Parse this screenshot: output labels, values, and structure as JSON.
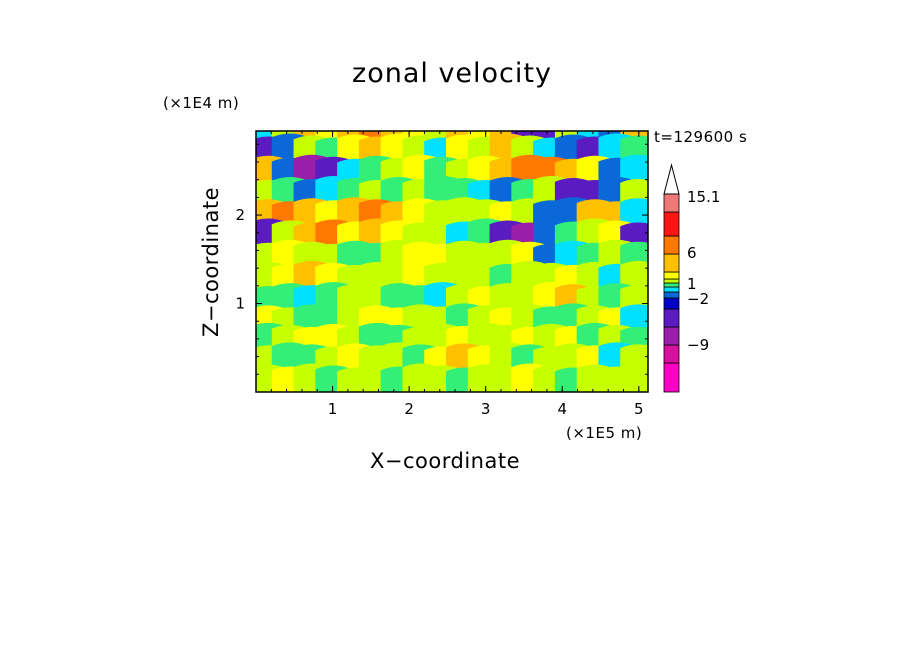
{
  "chart_data": {
    "type": "heatmap",
    "title": "zonal velocity",
    "xlabel": "X−coordinate",
    "ylabel": "Z−coordinate",
    "x_unit": "(×1E5 m)",
    "y_unit": "(×1E4 m)",
    "annotation": "t=129600 s",
    "xlim": [
      0,
      5.12
    ],
    "ylim": [
      0,
      2.95
    ],
    "x_ticks": [
      1,
      2,
      3,
      4,
      5
    ],
    "y_ticks": [
      1,
      2
    ],
    "colorbar": {
      "levels": [
        -15,
        -12,
        -9,
        -6,
        -4,
        -2,
        -1,
        0,
        1,
        2,
        4,
        6,
        9,
        12,
        15.1
      ],
      "labels": [
        {
          "value": 15.1,
          "text": "15.1"
        },
        {
          "value": 6,
          "text": "6"
        },
        {
          "value": 1,
          "text": "1"
        },
        {
          "value": -2,
          "text": "−2"
        },
        {
          "value": -9,
          "text": "−9"
        }
      ],
      "colors": [
        "#ff00c4",
        "#d7109e",
        "#9b1eaa",
        "#5a1bc1",
        "#0000c8",
        "#0a68d8",
        "#00e0ff",
        "#33ee77",
        "#c6ff00",
        "#ffff00",
        "#ffc000",
        "#ff7800",
        "#ff1414",
        "#f07878",
        "#ffc8c8"
      ],
      "arrow_color": "#ffffff"
    },
    "bands": [
      {
        "z": 2.92,
        "values": [
          -1,
          1,
          4,
          2,
          4,
          6,
          4,
          2,
          1,
          4,
          2,
          4,
          -6,
          -6,
          1,
          -1,
          -2,
          4
        ]
      },
      {
        "z": 2.72,
        "values": [
          -6,
          -2,
          1,
          0,
          2,
          4,
          2,
          1,
          -1,
          2,
          1,
          4,
          1,
          -1,
          -2,
          -6,
          -1,
          0
        ]
      },
      {
        "z": 2.48,
        "values": [
          4,
          -2,
          -9,
          -6,
          -1,
          0,
          1,
          2,
          0,
          1,
          2,
          4,
          6,
          6,
          4,
          2,
          -2,
          -1
        ]
      },
      {
        "z": 2.24,
        "values": [
          1,
          0,
          -2,
          -1,
          0,
          1,
          0,
          1,
          0,
          0,
          -1,
          -2,
          0,
          1,
          -6,
          -6,
          -2,
          1
        ]
      },
      {
        "z": 2.0,
        "values": [
          4,
          6,
          4,
          2,
          4,
          6,
          4,
          2,
          1,
          1,
          1,
          2,
          1,
          -2,
          -2,
          4,
          4,
          -1
        ]
      },
      {
        "z": 1.76,
        "values": [
          -6,
          1,
          4,
          6,
          2,
          4,
          2,
          1,
          1,
          -1,
          0,
          -6,
          -9,
          -2,
          0,
          1,
          2,
          -6
        ]
      },
      {
        "z": 1.52,
        "values": [
          1,
          2,
          1,
          1,
          0,
          0,
          1,
          2,
          2,
          1,
          1,
          1,
          2,
          -2,
          -1,
          0,
          1,
          0
        ]
      },
      {
        "z": 1.28,
        "values": [
          1,
          2,
          4,
          2,
          1,
          1,
          1,
          2,
          1,
          1,
          1,
          0,
          1,
          1,
          2,
          1,
          -1,
          1
        ]
      },
      {
        "z": 1.04,
        "values": [
          0,
          0,
          -1,
          0,
          1,
          1,
          0,
          0,
          -1,
          1,
          2,
          1,
          1,
          2,
          4,
          1,
          0,
          1
        ]
      },
      {
        "z": 0.8,
        "values": [
          2,
          1,
          0,
          0,
          1,
          2,
          2,
          1,
          1,
          0,
          1,
          2,
          1,
          0,
          0,
          1,
          2,
          -1
        ]
      },
      {
        "z": 0.58,
        "values": [
          0,
          1,
          2,
          2,
          1,
          0,
          0,
          1,
          1,
          2,
          1,
          1,
          2,
          1,
          2,
          0,
          1,
          0
        ]
      },
      {
        "z": 0.36,
        "values": [
          1,
          0,
          0,
          1,
          2,
          1,
          1,
          0,
          2,
          4,
          2,
          1,
          0,
          1,
          1,
          2,
          -1,
          1
        ]
      },
      {
        "z": 0.12,
        "values": [
          1,
          2,
          1,
          0,
          1,
          1,
          0,
          1,
          1,
          0,
          1,
          1,
          2,
          1,
          0,
          1,
          1,
          1
        ]
      }
    ]
  }
}
